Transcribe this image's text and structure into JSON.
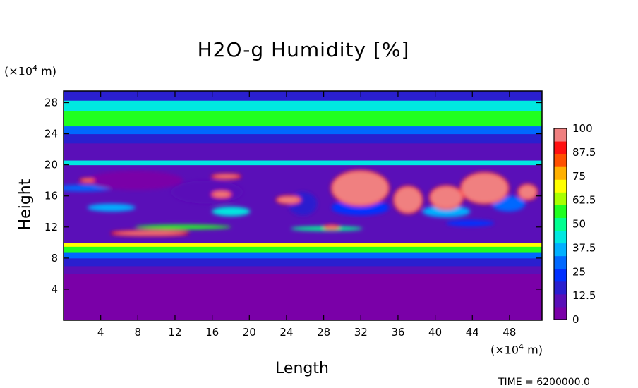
{
  "chart_data": {
    "type": "heatmap",
    "title": "H2O-g Humidity [%]",
    "xlabel": "Length",
    "ylabel": "Height",
    "x_unit": "(×10",
    "x_unit_exp": "4",
    "x_unit_tail": " m)",
    "y_unit": "(×10",
    "y_unit_exp": "4",
    "y_unit_tail": " m)",
    "x_ticks": [
      "4",
      "8",
      "12",
      "16",
      "20",
      "24",
      "28",
      "32",
      "36",
      "40",
      "44",
      "48"
    ],
    "y_ticks": [
      "4",
      "8",
      "12",
      "16",
      "20",
      "24",
      "28"
    ],
    "xlim": [
      0,
      51.5
    ],
    "ylim": [
      0,
      29.5
    ],
    "colorbar": {
      "label_values": [
        "0",
        "12.5",
        "25",
        "37.5",
        "50",
        "62.5",
        "75",
        "87.5",
        "100"
      ],
      "range": [
        0,
        100
      ],
      "colors": [
        "#7a00a8",
        "#5a0fb8",
        "#2a1fcf",
        "#0030ff",
        "#0068ff",
        "#00b0ff",
        "#00e8e0",
        "#00ff90",
        "#20ff20",
        "#a8ff00",
        "#ffff00",
        "#ffb000",
        "#ff5000",
        "#ff1010",
        "#f08080"
      ]
    },
    "layers": [
      {
        "y": [
          0,
          6.0
        ],
        "value": 2
      },
      {
        "y": [
          6.0,
          7.0
        ],
        "value": 6
      },
      {
        "y": [
          7.0,
          8.0
        ],
        "value": 12
      },
      {
        "y": [
          8.0,
          8.8
        ],
        "value": 25
      },
      {
        "y": [
          8.8,
          9.5
        ],
        "value": 55
      },
      {
        "y": [
          9.5,
          10.0
        ],
        "value": 68
      },
      {
        "y": [
          10.0,
          20.0
        ],
        "value": "mixed"
      },
      {
        "y": [
          20.0,
          20.6
        ],
        "value": 45
      },
      {
        "y": [
          20.6,
          22.8
        ],
        "value": 5
      },
      {
        "y": [
          22.8,
          24.0
        ],
        "value": 15
      },
      {
        "y": [
          24.0,
          25.0
        ],
        "value": 30
      },
      {
        "y": [
          25.0,
          27.0
        ],
        "value": 60
      },
      {
        "y": [
          27.0,
          28.3
        ],
        "value": 45
      },
      {
        "y": [
          28.3,
          29.5
        ],
        "value": 12
      }
    ]
  },
  "time_text": "TIME = 6200000.0"
}
